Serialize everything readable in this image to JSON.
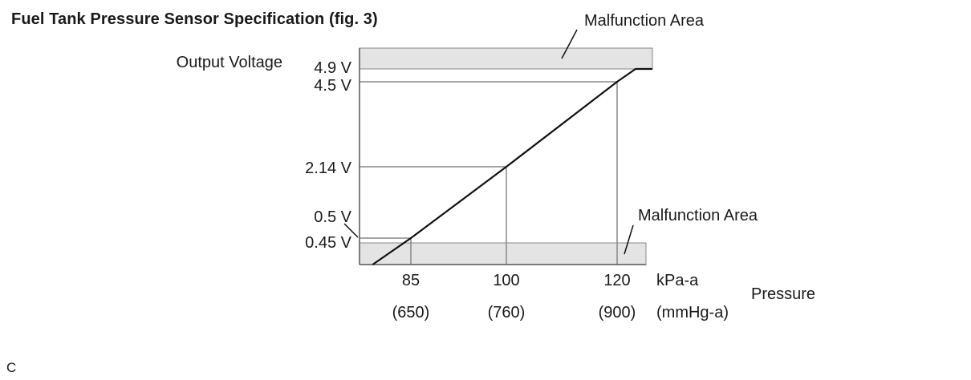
{
  "title": "Fuel Tank Pressure Sensor Specification (fig. 3)",
  "footer_code": "C",
  "colors": {
    "malfunction_band": "#e4e4e4",
    "line": "#111111",
    "guide": "#888888",
    "axis": "#555555"
  },
  "chart_data": {
    "type": "line",
    "ylabel": "Output Voltage",
    "xlabel": "Pressure",
    "x_unit_primary": "kPa-a",
    "x_unit_secondary": "(mmHg-a)",
    "x_ticks": [
      {
        "kpa": 85,
        "primary": "85",
        "secondary": "(650)"
      },
      {
        "kpa": 100,
        "primary": "100",
        "secondary": "(760)"
      },
      {
        "kpa": 120,
        "primary": "120",
        "secondary": "(900)"
      }
    ],
    "y_ticks": [
      {
        "v": 4.9,
        "label": "4.9 V"
      },
      {
        "v": 4.5,
        "label": "4.5 V"
      },
      {
        "v": 2.14,
        "label": "2.14 V"
      },
      {
        "v": 0.5,
        "label": "0.5 V"
      },
      {
        "v": 0.45,
        "label": "0.45 V"
      }
    ],
    "series": [
      {
        "x": [
          85,
          100,
          120,
          123,
          128
        ],
        "y": [
          0.5,
          2.14,
          4.5,
          4.9,
          4.9
        ]
      }
    ],
    "malfunction_areas": [
      {
        "label": "Malfunction Area",
        "y_from": 4.9,
        "y_to": 5.3
      },
      {
        "label": "Malfunction Area",
        "y_from": 0.0,
        "y_to": 0.45
      }
    ],
    "grid": false
  }
}
